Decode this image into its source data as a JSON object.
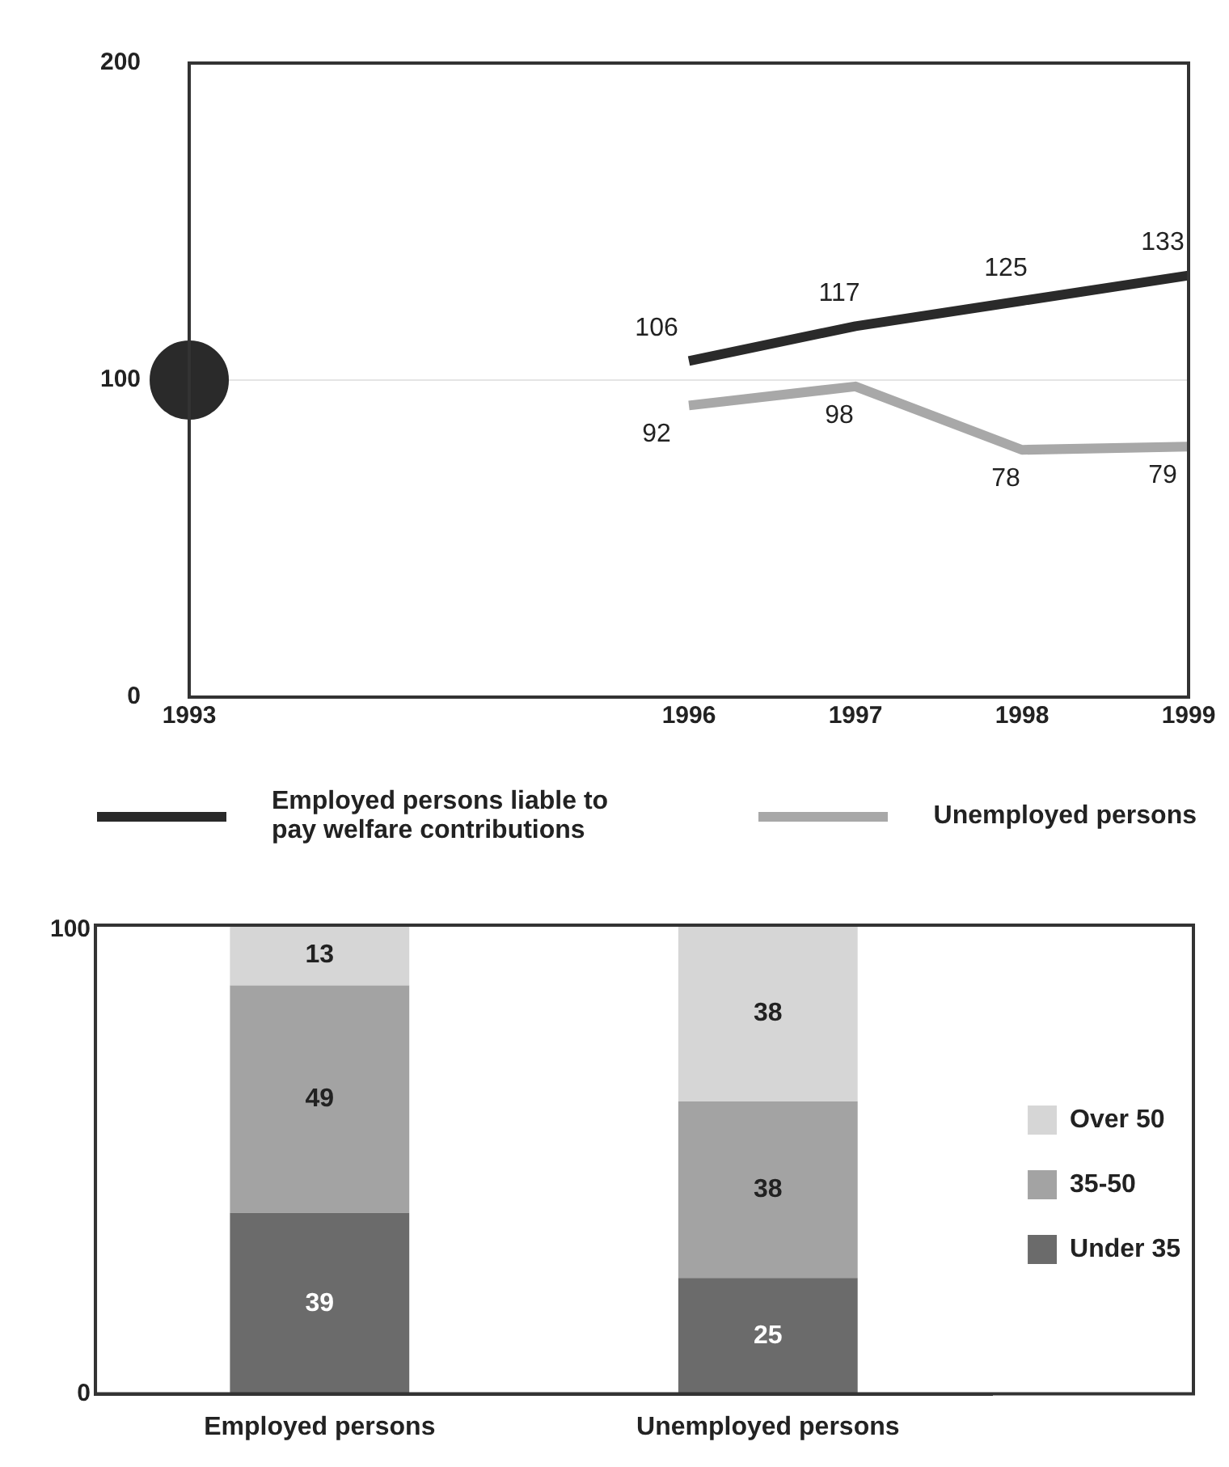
{
  "chart_data": [
    {
      "type": "line",
      "x": [
        1996,
        1997,
        1998,
        1999
      ],
      "xlim": [
        1993,
        1999
      ],
      "xticks": [
        1993,
        1996,
        1997,
        1998,
        1999
      ],
      "ylim": [
        0,
        200
      ],
      "yticks": [
        0,
        100,
        200
      ],
      "grid": "y",
      "legend": "bottom",
      "marker": "none",
      "series": [
        {
          "name": "Employed persons liable to pay welfare contributions",
          "color": "#2a2a2a",
          "values": [
            106,
            117,
            125,
            133
          ],
          "value_labels": [
            "106",
            "117",
            "125",
            "133"
          ]
        },
        {
          "name": "Unemployed persons",
          "color": "#a8a8a8",
          "values": [
            92,
            98,
            78,
            79
          ],
          "value_labels": [
            "92",
            "98",
            "78",
            "79"
          ]
        },
        {
          "type": "scatter",
          "x": [
            1993
          ],
          "color": "#2a2a2a",
          "marker": "circle",
          "values": [
            100
          ]
        }
      ]
    },
    {
      "type": "bar",
      "stacked": true,
      "categories": [
        "Employed persons",
        "Unemployed persons"
      ],
      "ylim": [
        0,
        101
      ],
      "yticks": [
        0,
        100
      ],
      "legend": "right",
      "data_labels": true,
      "series": [
        {
          "name": "Under 35",
          "color": "#6b6b6b",
          "values": [
            39,
            25
          ]
        },
        {
          "name": "35-50",
          "color": "#a3a3a3",
          "values": [
            49,
            38
          ]
        },
        {
          "name": "Over 50",
          "color": "#d6d6d6",
          "values": [
            13,
            38
          ]
        }
      ]
    }
  ]
}
